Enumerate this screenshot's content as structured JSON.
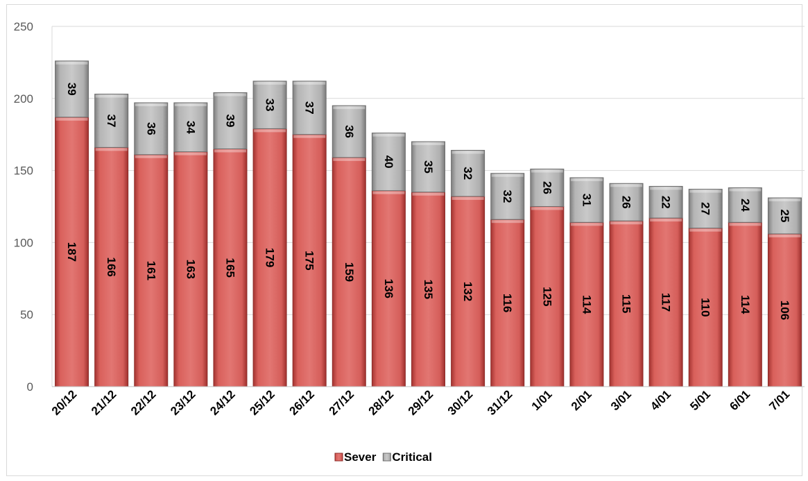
{
  "chart_data": {
    "type": "bar",
    "stacked": true,
    "categories": [
      "20/12",
      "21/12",
      "22/12",
      "23/12",
      "24/12",
      "25/12",
      "26/12",
      "27/12",
      "28/12",
      "29/12",
      "30/12",
      "31/12",
      "1/01",
      "2/01",
      "3/01",
      "4/01",
      "5/01",
      "6/01",
      "7/01"
    ],
    "series": [
      {
        "name": "Sever",
        "color": "#c0504d",
        "values": [
          187,
          166,
          161,
          163,
          165,
          179,
          175,
          159,
          136,
          135,
          132,
          116,
          125,
          114,
          115,
          117,
          110,
          114,
          106
        ]
      },
      {
        "name": "Critical",
        "color": "#a6a6a6",
        "values": [
          39,
          37,
          36,
          34,
          39,
          33,
          37,
          36,
          40,
          35,
          32,
          32,
          26,
          31,
          26,
          22,
          27,
          24,
          25
        ]
      }
    ],
    "ylim": [
      0,
      250
    ],
    "yticks": [
      "0",
      "50",
      "100",
      "150",
      "200",
      "250"
    ],
    "grid": true,
    "legend_position": "bottom",
    "data_labels": true
  }
}
